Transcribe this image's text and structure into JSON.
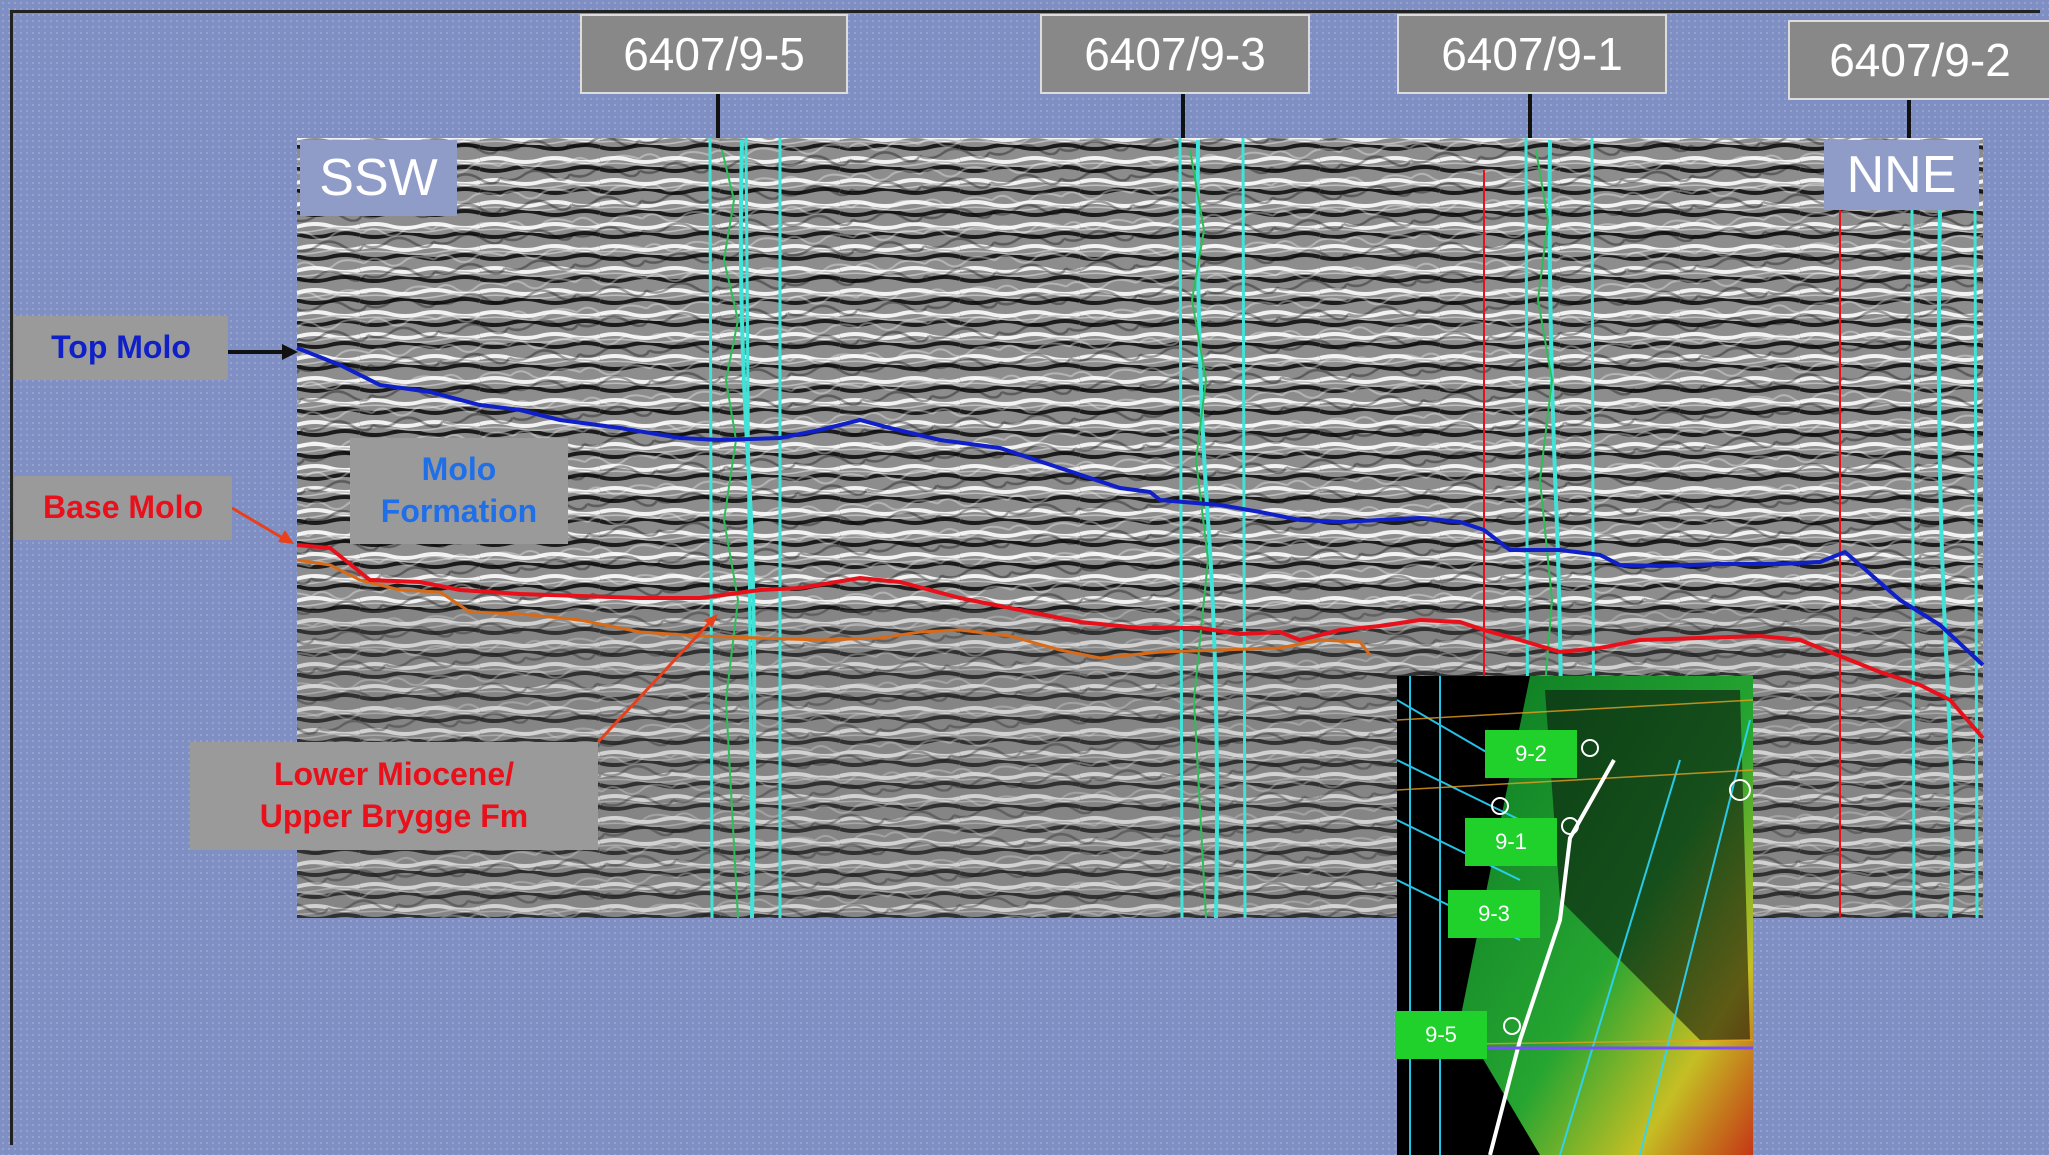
{
  "wells": [
    {
      "id": "w5",
      "label": "6407/9-5"
    },
    {
      "id": "w3",
      "label": "6407/9-3"
    },
    {
      "id": "w1",
      "label": "6407/9-1"
    },
    {
      "id": "w2",
      "label": "6407/9-2"
    }
  ],
  "directions": {
    "left": "SSW",
    "right": "NNE"
  },
  "callouts": {
    "top_molo": "Top Molo",
    "base_molo": "Base Molo",
    "molo_formation_line1": "Molo",
    "molo_formation_line2": "Formation",
    "lower_line1": "Lower Miocene/",
    "lower_line2": "Upper Brygge Fm"
  },
  "map_tags": [
    "9-2",
    "9-1",
    "9-3",
    "9-5"
  ],
  "colors": {
    "top_molo": "#1020c8",
    "base_molo": "#e8101a",
    "lower": "#d86a18",
    "well_track": "#3fe3d8",
    "background": "#7f8fc4"
  }
}
